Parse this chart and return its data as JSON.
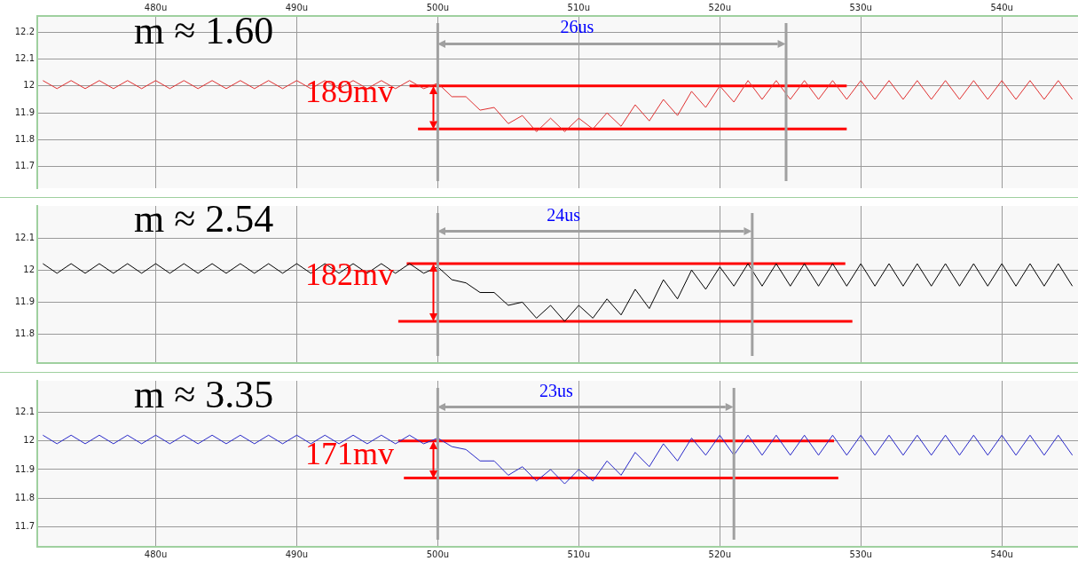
{
  "chart_data": [
    {
      "type": "line",
      "x": [
        472,
        473,
        474,
        475,
        476,
        477,
        478,
        479,
        480,
        481,
        482,
        483,
        484,
        485,
        486,
        487,
        488,
        489,
        490,
        491,
        492,
        493,
        494,
        495,
        496,
        497,
        498,
        499,
        500,
        501,
        502,
        503,
        504,
        505,
        506,
        507,
        508,
        509,
        510,
        511,
        512,
        513,
        514,
        515,
        516,
        517,
        518,
        519,
        520,
        521,
        522,
        523,
        524,
        525,
        526,
        527,
        528,
        529,
        530,
        531,
        532,
        533,
        534,
        535,
        536,
        537,
        538,
        539,
        540,
        541,
        542,
        543,
        544,
        545
      ],
      "series": [
        {
          "color": "#e03030",
          "values": [
            12.02,
            11.99,
            12.02,
            11.99,
            12.02,
            11.99,
            12.02,
            11.99,
            12.02,
            11.99,
            12.02,
            11.99,
            12.02,
            11.99,
            12.02,
            11.99,
            12.02,
            11.99,
            12.02,
            11.99,
            12.02,
            11.99,
            12.02,
            11.99,
            12.02,
            11.99,
            12.02,
            11.99,
            12.01,
            11.96,
            11.96,
            11.91,
            11.92,
            11.86,
            11.89,
            11.83,
            11.88,
            11.83,
            11.88,
            11.84,
            11.9,
            11.85,
            11.93,
            11.87,
            11.95,
            11.89,
            11.98,
            11.92,
            12.0,
            11.94,
            12.02,
            11.95,
            12.02,
            11.95,
            12.02,
            11.95,
            12.02,
            11.95,
            12.02,
            11.95,
            12.02,
            11.95,
            12.02,
            11.95,
            12.02,
            11.95,
            12.02,
            11.95,
            12.02,
            11.95,
            12.02,
            11.95,
            12.02,
            11.95
          ]
        },
        {
          "type": "line",
          "color": "#ff0000",
          "x": [
            498,
            529
          ],
          "values": [
            12.0,
            12.0
          ]
        },
        {
          "type": "line",
          "color": "#ff0000",
          "x": [
            498.6,
            529
          ],
          "values": [
            11.84,
            11.84
          ]
        }
      ],
      "xlim": [
        471.6,
        545.4
      ],
      "xticks": [
        {
          "value": 480,
          "label": "480u"
        },
        {
          "value": 490,
          "label": "490u"
        },
        {
          "value": 500,
          "label": "500u"
        },
        {
          "value": 510,
          "label": "510u"
        },
        {
          "value": 520,
          "label": "520u"
        },
        {
          "value": 530,
          "label": "530u"
        },
        {
          "value": 540,
          "label": "540u"
        }
      ],
      "ylim": [
        11.62,
        12.26
      ],
      "yticks": [
        11.7,
        11.8,
        11.9,
        12,
        12.1,
        12.2
      ],
      "ref_lines": [
        {
          "axis": "x",
          "value": 500,
          "color": "#a0a0a0"
        },
        {
          "axis": "x",
          "value": 524.7,
          "color": "#a0a0a0"
        }
      ],
      "annotations": [
        "m ≈ 1.60",
        "189mv",
        "26us"
      ],
      "grid": true,
      "legend": false,
      "marker": "none"
    },
    {
      "type": "line",
      "x": [
        472,
        473,
        474,
        475,
        476,
        477,
        478,
        479,
        480,
        481,
        482,
        483,
        484,
        485,
        486,
        487,
        488,
        489,
        490,
        491,
        492,
        493,
        494,
        495,
        496,
        497,
        498,
        499,
        500,
        501,
        502,
        503,
        504,
        505,
        506,
        507,
        508,
        509,
        510,
        511,
        512,
        513,
        514,
        515,
        516,
        517,
        518,
        519,
        520,
        521,
        522,
        523,
        524,
        525,
        526,
        527,
        528,
        529,
        530,
        531,
        532,
        533,
        534,
        535,
        536,
        537,
        538,
        539,
        540,
        541,
        542,
        543,
        544,
        545
      ],
      "series": [
        {
          "color": "#000000",
          "values": [
            12.02,
            11.99,
            12.02,
            11.99,
            12.02,
            11.99,
            12.02,
            11.99,
            12.02,
            11.99,
            12.02,
            11.99,
            12.02,
            11.99,
            12.02,
            11.99,
            12.02,
            11.99,
            12.02,
            11.99,
            12.02,
            11.99,
            12.02,
            11.99,
            12.02,
            11.99,
            12.02,
            11.99,
            12.01,
            11.97,
            11.96,
            11.93,
            11.93,
            11.89,
            11.9,
            11.85,
            11.89,
            11.84,
            11.89,
            11.85,
            11.91,
            11.86,
            11.94,
            11.88,
            11.97,
            11.91,
            12.0,
            11.94,
            12.01,
            11.95,
            12.02,
            11.95,
            12.02,
            11.95,
            12.02,
            11.95,
            12.02,
            11.95,
            12.02,
            11.95,
            12.02,
            11.95,
            12.02,
            11.95,
            12.02,
            11.95,
            12.02,
            11.95,
            12.02,
            11.95,
            12.02,
            11.95,
            12.02,
            11.95
          ]
        },
        {
          "type": "line",
          "color": "#ff0000",
          "x": [
            497.8,
            528.9
          ],
          "values": [
            12.02,
            12.02
          ]
        },
        {
          "type": "line",
          "color": "#ff0000",
          "x": [
            497.2,
            529.4
          ],
          "values": [
            11.84,
            11.84
          ]
        }
      ],
      "xlim": [
        471.6,
        545.4
      ],
      "xticks": [
        {
          "value": 480,
          "label": null
        },
        {
          "value": 490,
          "label": null
        },
        {
          "value": 500,
          "label": null
        },
        {
          "value": 510,
          "label": null
        },
        {
          "value": 520,
          "label": null
        },
        {
          "value": 530,
          "label": null
        },
        {
          "value": 540,
          "label": null
        }
      ],
      "ylim": [
        11.71,
        12.2
      ],
      "yticks": [
        11.8,
        11.9,
        12,
        12.1
      ],
      "ref_lines": [
        {
          "axis": "x",
          "value": 500,
          "color": "#a0a0a0"
        },
        {
          "axis": "x",
          "value": 522.3,
          "color": "#a0a0a0"
        }
      ],
      "annotations": [
        "m ≈ 2.54",
        "182mv",
        "24us"
      ],
      "grid": true,
      "legend": false,
      "marker": "none",
      "tick_labels": "y"
    },
    {
      "type": "line",
      "x": [
        472,
        473,
        474,
        475,
        476,
        477,
        478,
        479,
        480,
        481,
        482,
        483,
        484,
        485,
        486,
        487,
        488,
        489,
        490,
        491,
        492,
        493,
        494,
        495,
        496,
        497,
        498,
        499,
        500,
        501,
        502,
        503,
        504,
        505,
        506,
        507,
        508,
        509,
        510,
        511,
        512,
        513,
        514,
        515,
        516,
        517,
        518,
        519,
        520,
        521,
        522,
        523,
        524,
        525,
        526,
        527,
        528,
        529,
        530,
        531,
        532,
        533,
        534,
        535,
        536,
        537,
        538,
        539,
        540,
        541,
        542,
        543,
        544,
        545
      ],
      "series": [
        {
          "color": "#2828c8",
          "values": [
            12.02,
            11.99,
            12.02,
            11.99,
            12.02,
            11.99,
            12.02,
            11.99,
            12.02,
            11.99,
            12.02,
            11.99,
            12.02,
            11.99,
            12.02,
            11.99,
            12.02,
            11.99,
            12.02,
            11.99,
            12.02,
            11.99,
            12.02,
            11.99,
            12.02,
            11.99,
            12.02,
            11.99,
            12.01,
            11.98,
            11.97,
            11.93,
            11.93,
            11.88,
            11.91,
            11.86,
            11.9,
            11.85,
            11.9,
            11.86,
            11.93,
            11.88,
            11.96,
            11.91,
            11.99,
            11.93,
            12.01,
            11.95,
            12.02,
            11.95,
            12.02,
            11.95,
            12.02,
            11.95,
            12.02,
            11.95,
            12.02,
            11.95,
            12.02,
            11.95,
            12.02,
            11.95,
            12.02,
            11.95,
            12.02,
            11.95,
            12.02,
            11.95,
            12.02,
            11.95,
            12.02,
            11.95,
            12.02,
            11.95
          ]
        },
        {
          "type": "line",
          "color": "#ff0000",
          "x": [
            497.2,
            528.1
          ],
          "values": [
            12.0,
            12.0
          ]
        },
        {
          "type": "line",
          "color": "#ff0000",
          "x": [
            497.6,
            528.4
          ],
          "values": [
            11.87,
            11.87
          ]
        }
      ],
      "xlim": [
        471.6,
        545.4
      ],
      "xticks": [
        {
          "value": 480,
          "label": "480u"
        },
        {
          "value": 490,
          "label": "490u"
        },
        {
          "value": 500,
          "label": "500u"
        },
        {
          "value": 510,
          "label": "510u"
        },
        {
          "value": 520,
          "label": "520u"
        },
        {
          "value": 530,
          "label": "530u"
        },
        {
          "value": 540,
          "label": "540u"
        }
      ],
      "ylim": [
        11.63,
        12.21
      ],
      "yticks": [
        11.7,
        11.8,
        11.9,
        12,
        12.1
      ],
      "ref_lines": [
        {
          "axis": "x",
          "value": 500,
          "color": "#a0a0a0"
        },
        {
          "axis": "x",
          "value": 521,
          "color": "#a0a0a0"
        }
      ],
      "annotations": [
        "m ≈ 3.35",
        "171mv",
        "23us"
      ],
      "grid": true,
      "legend": false,
      "marker": "none"
    }
  ]
}
